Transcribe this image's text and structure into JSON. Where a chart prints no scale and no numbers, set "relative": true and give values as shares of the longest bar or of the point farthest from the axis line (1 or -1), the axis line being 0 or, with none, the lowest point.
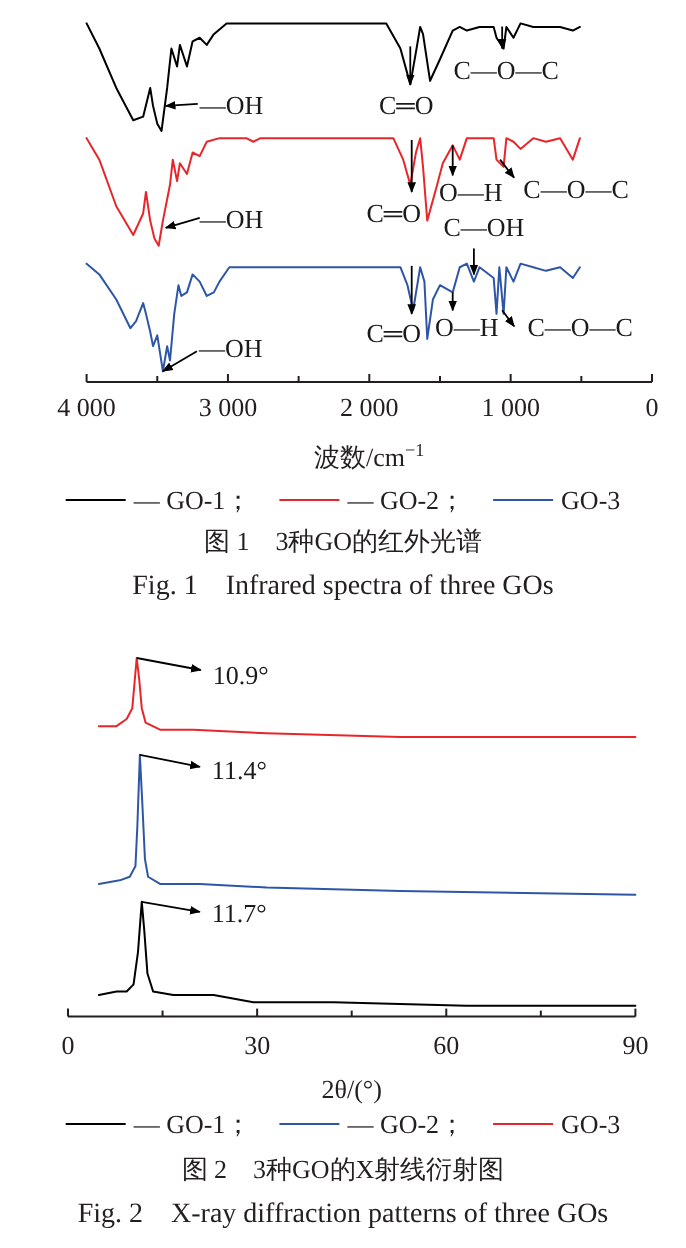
{
  "chart_data": [
    {
      "type": "line",
      "relative": true,
      "title": "图 1　3种GO的红外光谱",
      "subtitle": "Fig. 1　Infrared spectra of three GOs",
      "xlabel": "波数/cm$^{−1}$",
      "xlim": [
        4000,
        0
      ],
      "xticks": [
        {
          "value": 4000,
          "label": "4 000"
        },
        {
          "value": 3500,
          "label": null
        },
        {
          "value": 3000,
          "label": "3 000"
        },
        {
          "value": 2500,
          "label": null
        },
        {
          "value": 2000,
          "label": "2 000"
        },
        {
          "value": 1500,
          "label": null
        },
        {
          "value": 1000,
          "label": "1 000"
        },
        {
          "value": 500,
          "label": null
        },
        0
      ],
      "legend": "bottom",
      "grid": false,
      "marker": "none",
      "line_style": "solid",
      "series": [
        {
          "name": "— GO-1；",
          "color": "#000000",
          "x": [
            4000,
            3910,
            3790,
            3670,
            3600,
            3550,
            3530,
            3500,
            3470,
            3430,
            3400,
            3360,
            3340,
            3290,
            3250,
            3200,
            3150,
            3100,
            3010,
            1880,
            1780,
            1710,
            1670,
            1640,
            1620,
            1570,
            1500,
            1410,
            1360,
            1310,
            1220,
            1120,
            1100,
            1050,
            1030,
            980,
            930,
            840,
            750,
            650,
            560,
            510
          ],
          "values": [
            1.0,
            0.93,
            0.82,
            0.73,
            0.74,
            0.82,
            0.77,
            0.72,
            0.7,
            0.82,
            0.93,
            0.88,
            0.94,
            0.88,
            0.95,
            0.96,
            0.94,
            0.97,
            1.0,
            1.0,
            0.93,
            0.83,
            0.92,
            0.99,
            0.97,
            0.84,
            0.9,
            0.98,
            0.99,
            0.98,
            0.99,
            0.99,
            0.96,
            0.93,
            0.99,
            0.96,
            1.0,
            0.99,
            0.99,
            0.99,
            0.98,
            0.99
          ]
        },
        {
          "name": "— GO-2；",
          "color": "#e8262a",
          "x": [
            4000,
            3910,
            3790,
            3670,
            3600,
            3580,
            3550,
            3520,
            3490,
            3460,
            3410,
            3390,
            3360,
            3340,
            3290,
            3250,
            3200,
            3150,
            3060,
            2870,
            2820,
            2770,
            1830,
            1760,
            1710,
            1670,
            1640,
            1620,
            1590,
            1520,
            1480,
            1410,
            1360,
            1310,
            1220,
            1120,
            1100,
            1050,
            1030,
            980,
            930,
            840,
            750,
            650,
            560,
            510
          ],
          "values": [
            0.68,
            0.62,
            0.49,
            0.41,
            0.47,
            0.53,
            0.45,
            0.4,
            0.38,
            0.45,
            0.55,
            0.62,
            0.56,
            0.61,
            0.58,
            0.64,
            0.63,
            0.67,
            0.68,
            0.68,
            0.67,
            0.68,
            0.68,
            0.62,
            0.55,
            0.64,
            0.68,
            0.6,
            0.45,
            0.55,
            0.61,
            0.66,
            0.62,
            0.68,
            0.68,
            0.68,
            0.62,
            0.6,
            0.68,
            0.67,
            0.65,
            0.68,
            0.67,
            0.68,
            0.62,
            0.68
          ]
        },
        {
          "name": "GO-3",
          "color": "#2f56a6",
          "x": [
            4000,
            3910,
            3790,
            3690,
            3650,
            3600,
            3580,
            3550,
            3530,
            3500,
            3480,
            3460,
            3430,
            3410,
            3380,
            3350,
            3330,
            3290,
            3250,
            3200,
            3150,
            3100,
            3060,
            2990,
            2820,
            1780,
            1730,
            1690,
            1640,
            1610,
            1590,
            1550,
            1500,
            1410,
            1360,
            1310,
            1260,
            1220,
            1120,
            1100,
            1080,
            1050,
            1030,
            980,
            930,
            840,
            750,
            650,
            560,
            510
          ],
          "values": [
            0.33,
            0.3,
            0.23,
            0.15,
            0.17,
            0.22,
            0.19,
            0.14,
            0.1,
            0.13,
            0.08,
            0.03,
            0.1,
            0.06,
            0.19,
            0.27,
            0.24,
            0.25,
            0.3,
            0.28,
            0.24,
            0.25,
            0.28,
            0.32,
            0.32,
            0.32,
            0.27,
            0.2,
            0.32,
            0.28,
            0.12,
            0.23,
            0.27,
            0.25,
            0.32,
            0.33,
            0.28,
            0.32,
            0.29,
            0.19,
            0.32,
            0.19,
            0.32,
            0.28,
            0.33,
            0.32,
            0.31,
            0.32,
            0.29,
            0.32
          ]
        }
      ],
      "annotations": [
        {
          "text": "—OH",
          "x": 3440,
          "y": 0.77
        },
        {
          "text": "C═O",
          "x": 1710,
          "y": 0.83
        },
        {
          "text": "C—O—C",
          "x": 1060,
          "y": 0.93
        },
        {
          "text": "—OH",
          "x": 3440,
          "y": 0.43
        },
        {
          "text": "C═O",
          "x": 1700,
          "y": 0.53
        },
        {
          "text": "O—H",
          "x": 1410,
          "y": 0.66
        },
        {
          "text": "C—O—C",
          "x": 1075,
          "y": 0.62
        },
        {
          "text": "C—OH",
          "x": 1260,
          "y": 0.3
        },
        {
          "text": "C═O",
          "x": 1700,
          "y": 0.19
        },
        {
          "text": "O—H",
          "x": 1410,
          "y": 0.25
        },
        {
          "text": "C—O—C",
          "x": 1060,
          "y": 0.2
        },
        {
          "text": "—OH",
          "x": 3460,
          "y": 0.03
        }
      ]
    },
    {
      "type": "line",
      "relative": true,
      "title": "图 2　3种GO的X射线衍射图",
      "subtitle": "Fig. 2　X-ray diffraction patterns of three GOs",
      "xlabel": "2θ/(°)",
      "xlim": [
        0,
        90
      ],
      "xticks": [
        0,
        {
          "value": 15,
          "label": null
        },
        30,
        {
          "value": 45,
          "label": null
        },
        60,
        {
          "value": 75,
          "label": null
        },
        90
      ],
      "legend": "bottom",
      "grid": false,
      "marker": "none",
      "line_style": "solid",
      "series": [
        {
          "name": "— GO-1；",
          "color": "#000000",
          "x": [
            4.9,
            7.7,
            9.3,
            10.4,
            11.1,
            11.7,
            12.1,
            12.6,
            13.5,
            16.7,
            23.1,
            29.4,
            42.1,
            63.2,
            90
          ],
          "values": [
            0.06,
            0.07,
            0.07,
            0.09,
            0.18,
            0.32,
            0.24,
            0.12,
            0.07,
            0.06,
            0.06,
            0.04,
            0.04,
            0.03,
            0.03
          ]
        },
        {
          "name": "— GO-2；",
          "color": "#2f56a6",
          "x": [
            4.9,
            8.2,
            9.8,
            10.7,
            11.0,
            11.4,
            11.8,
            12.2,
            12.7,
            14.6,
            20.9,
            31.5,
            52.7,
            90
          ],
          "values": [
            0.37,
            0.38,
            0.39,
            0.42,
            0.53,
            0.73,
            0.59,
            0.44,
            0.39,
            0.37,
            0.37,
            0.36,
            0.35,
            0.34
          ]
        },
        {
          "name": "GO-3",
          "color": "#e8262a",
          "x": [
            4.9,
            7.7,
            9.3,
            10.2,
            10.6,
            10.9,
            11.3,
            11.7,
            12.3,
            14.6,
            19.9,
            31.5,
            52.7,
            90
          ],
          "values": [
            0.81,
            0.81,
            0.83,
            0.86,
            0.94,
            1.0,
            0.94,
            0.86,
            0.82,
            0.8,
            0.8,
            0.79,
            0.78,
            0.78
          ]
        }
      ],
      "annotations": [
        {
          "text": "10.9°",
          "x": 10.9,
          "y": 1.0
        },
        {
          "text": "11.4°",
          "x": 11.4,
          "y": 0.73
        },
        {
          "text": "11.7°",
          "x": 11.7,
          "y": 0.32
        }
      ]
    }
  ]
}
